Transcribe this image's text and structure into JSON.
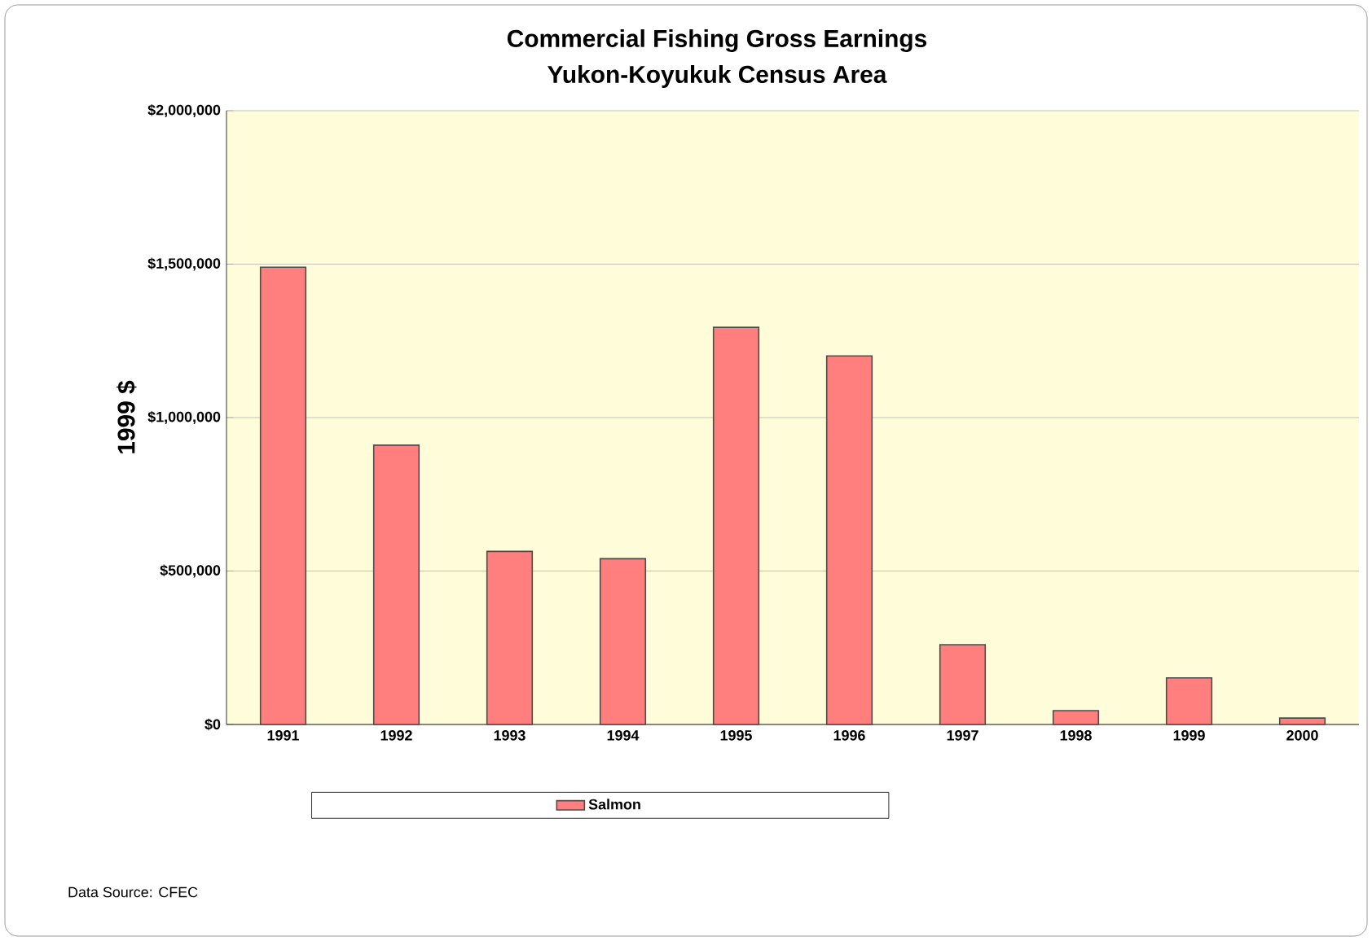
{
  "chart_data": {
    "type": "bar",
    "title": "Commercial Fishing Gross Earnings",
    "subtitle": "Yukon-Koyukuk Census Area",
    "ylabel": "1999 $",
    "categories": [
      "1991",
      "1992",
      "1993",
      "1994",
      "1995",
      "1996",
      "1997",
      "1998",
      "1999",
      "2000"
    ],
    "series": [
      {
        "name": "Salmon",
        "color": "#ff7f7f",
        "values": [
          1490000,
          910000,
          564000,
          540000,
          1294000,
          1201000,
          260000,
          45000,
          152000,
          21000
        ]
      }
    ],
    "ylim": [
      0,
      2000000
    ],
    "yticks": [
      {
        "value": 0,
        "label": "$0"
      },
      {
        "value": 500000,
        "label": "$500,000"
      },
      {
        "value": 1000000,
        "label": "$1,000,000"
      },
      {
        "value": 1500000,
        "label": "$1,500,000"
      },
      {
        "value": 2000000,
        "label": "$2,000,000"
      }
    ],
    "grid": "y",
    "legend": "bottom",
    "annotations": [
      "Data Source: CFEC"
    ]
  }
}
